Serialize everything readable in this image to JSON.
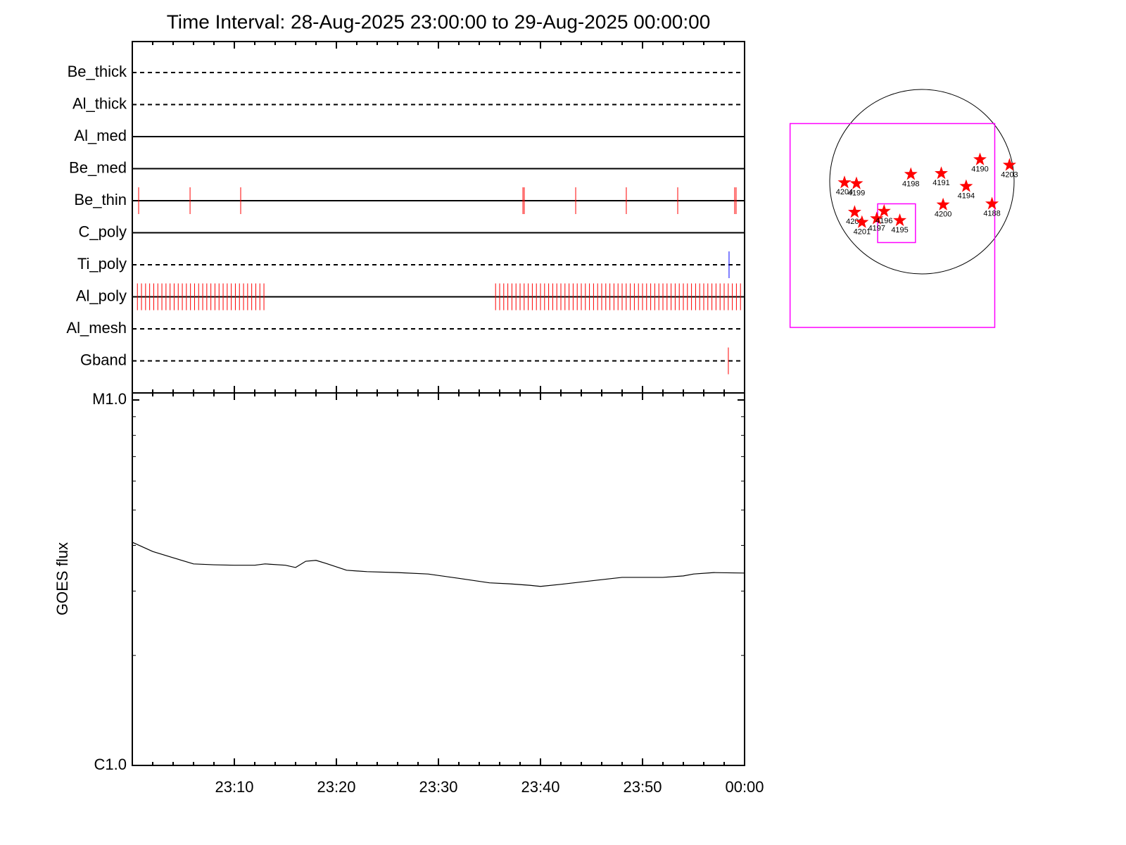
{
  "chart_data": [
    {
      "type": "timeline",
      "title": "Time Interval: 28-Aug-2025 23:00:00 to 29-Aug-2025 00:00:00",
      "xlim": [
        0,
        60
      ],
      "rows": [
        {
          "name": "Be_thick",
          "style": "dashed",
          "events": []
        },
        {
          "name": "Al_thick",
          "style": "dashed",
          "events": []
        },
        {
          "name": "Al_med",
          "style": "solid",
          "events": []
        },
        {
          "name": "Be_med",
          "style": "solid",
          "events": []
        },
        {
          "name": "Be_thin",
          "style": "solid",
          "color": "#ff0000",
          "events": [
            0.62,
            5.66,
            10.62,
            38.28,
            38.41,
            43.45,
            48.41,
            53.45,
            59.03,
            59.17
          ]
        },
        {
          "name": "C_poly",
          "style": "solid",
          "events": []
        },
        {
          "name": "Ti_poly",
          "style": "dashed",
          "color": "#0000ff",
          "events": [
            58.48
          ]
        },
        {
          "name": "Al_poly",
          "style": "solid",
          "color": "#ff0000",
          "events": [
            0.5,
            0.9,
            1.3,
            1.7,
            2.1,
            2.5,
            2.9,
            3.3,
            3.7,
            4.1,
            4.5,
            4.9,
            5.3,
            5.7,
            6.1,
            6.5,
            6.9,
            7.3,
            7.7,
            8.1,
            8.5,
            8.9,
            9.3,
            9.7,
            10.1,
            10.5,
            10.9,
            11.3,
            11.7,
            12.1,
            12.5,
            12.9,
            35.6,
            36.0,
            36.4,
            36.8,
            37.2,
            37.6,
            38.0,
            38.4,
            38.8,
            39.2,
            39.6,
            40.0,
            40.4,
            40.8,
            41.2,
            41.6,
            42.0,
            42.4,
            42.8,
            43.2,
            43.6,
            44.0,
            44.4,
            44.8,
            45.2,
            45.6,
            46.0,
            46.4,
            46.8,
            47.2,
            47.6,
            48.0,
            48.4,
            48.8,
            49.2,
            49.6,
            50.0,
            50.4,
            50.8,
            51.2,
            51.6,
            52.0,
            52.4,
            52.8,
            53.2,
            53.6,
            54.0,
            54.4,
            54.8,
            55.2,
            55.6,
            56.0,
            56.4,
            56.8,
            57.2,
            57.6,
            58.0,
            58.4,
            58.8,
            59.2,
            59.6
          ]
        },
        {
          "name": "Al_mesh",
          "style": "dashed",
          "events": []
        },
        {
          "name": "Gband",
          "style": "dashed",
          "color": "#ff0000",
          "events": [
            58.41
          ]
        }
      ]
    },
    {
      "type": "line",
      "y_label": "GOES flux",
      "log_scale": true,
      "color": "#000000",
      "xlim": [
        0,
        60
      ],
      "xticks": [
        {
          "value": 10,
          "label": "23:10"
        },
        {
          "value": 20,
          "label": "23:20"
        },
        {
          "value": 30,
          "label": "23:30"
        },
        {
          "value": 40,
          "label": "23:40"
        },
        {
          "value": 50,
          "label": "23:50"
        },
        {
          "value": 60,
          "label": "00:00"
        }
      ],
      "xminorticks": [
        2,
        4,
        6,
        8,
        12,
        14,
        16,
        18,
        22,
        24,
        26,
        28,
        32,
        34,
        36,
        38,
        42,
        44,
        46,
        48,
        52,
        54,
        56,
        58
      ],
      "ylim": [
        1e-06,
        1e-05
      ],
      "yticks": [
        {
          "value": 1e-06,
          "label": "C1.0"
        },
        {
          "value": 1e-05,
          "label": "M1.0"
        }
      ],
      "yminorticks": [
        2e-06,
        3e-06,
        4e-06,
        5e-06,
        6e-06,
        7e-06,
        8e-06,
        9e-06
      ],
      "x": [
        0,
        2,
        4,
        6,
        8,
        10,
        12,
        13,
        15,
        16,
        17,
        18,
        19,
        21,
        23,
        26,
        29,
        32,
        35,
        37,
        39,
        40,
        42,
        45,
        48,
        52,
        54,
        55,
        57,
        60
      ],
      "values": [
        4.08e-06,
        3.85e-06,
        3.7e-06,
        3.56e-06,
        3.54e-06,
        3.53e-06,
        3.53e-06,
        3.56e-06,
        3.53e-06,
        3.48e-06,
        3.62e-06,
        3.64e-06,
        3.57e-06,
        3.42e-06,
        3.39e-06,
        3.37e-06,
        3.34e-06,
        3.25e-06,
        3.16e-06,
        3.14e-06,
        3.11e-06,
        3.09e-06,
        3.13e-06,
        3.2e-06,
        3.27e-06,
        3.27e-06,
        3.3e-06,
        3.34e-06,
        3.37e-06,
        3.36e-06
      ]
    },
    {
      "type": "sunmap",
      "color": "#ff0000",
      "box_color": "#ff00ff",
      "regions": [
        "4190",
        "4203",
        "4198",
        "4191",
        "4204",
        "4199",
        "4194",
        "4188",
        "4200",
        "4202",
        "4201",
        "4197",
        "4196",
        "4195"
      ],
      "x": [
        0.63,
        0.95,
        -0.12,
        0.21,
        -0.84,
        -0.71,
        0.48,
        0.76,
        0.23,
        -0.73,
        -0.65,
        -0.49,
        -0.41,
        -0.24
      ],
      "y": [
        0.24,
        0.18,
        0.08,
        0.09,
        -0.01,
        -0.02,
        -0.05,
        -0.24,
        -0.25,
        -0.33,
        -0.44,
        -0.4,
        -0.32,
        -0.42
      ],
      "boxes": [
        {
          "x": [
            -1.43,
            0.79
          ],
          "y": [
            0.63,
            -1.58
          ]
        },
        {
          "x": [
            -0.48,
            -0.07
          ],
          "y": [
            -0.24,
            -0.66
          ]
        }
      ]
    }
  ]
}
